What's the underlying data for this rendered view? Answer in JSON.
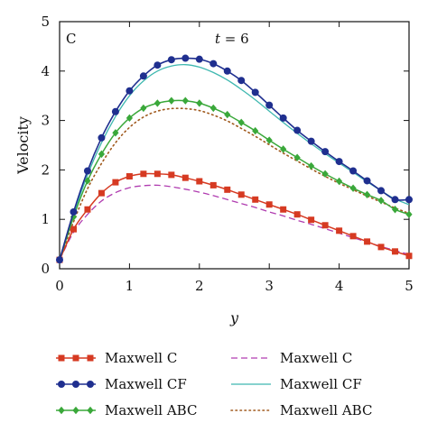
{
  "chart_data": {
    "type": "line",
    "panel_label": "C",
    "annotation_var": "t",
    "annotation_eq": " = 6",
    "xlabel": "y",
    "ylabel": "Velocity",
    "xlim": [
      0,
      5
    ],
    "ylim": [
      0,
      5
    ],
    "xticks": [
      0,
      1,
      2,
      3,
      4,
      5
    ],
    "yticks": [
      0,
      1,
      2,
      3,
      4,
      5
    ],
    "grid": false,
    "legend_position": "bottom",
    "series": [
      {
        "name": "Maxwell C",
        "style": "square-markers",
        "color": "#d63a22",
        "x": [
          0,
          0.2,
          0.4,
          0.6,
          0.8,
          1.0,
          1.2,
          1.4,
          1.6,
          1.8,
          2.0,
          2.2,
          2.4,
          2.6,
          2.8,
          3.0,
          3.2,
          3.4,
          3.6,
          3.8,
          4.0,
          4.2,
          4.4,
          4.6,
          4.8,
          5.0
        ],
        "values": [
          0.18,
          0.8,
          1.2,
          1.53,
          1.75,
          1.87,
          1.92,
          1.92,
          1.9,
          1.84,
          1.77,
          1.69,
          1.6,
          1.5,
          1.4,
          1.3,
          1.2,
          1.1,
          0.99,
          0.88,
          0.77,
          0.66,
          0.55,
          0.44,
          0.35,
          0.26
        ]
      },
      {
        "name": "Maxwell CF",
        "style": "circle-markers",
        "color": "#1f2f8f",
        "x": [
          0,
          0.2,
          0.4,
          0.6,
          0.8,
          1.0,
          1.2,
          1.4,
          1.6,
          1.8,
          2.0,
          2.2,
          2.4,
          2.6,
          2.8,
          3.0,
          3.2,
          3.4,
          3.6,
          3.8,
          4.0,
          4.2,
          4.4,
          4.6,
          4.8,
          5.0
        ],
        "values": [
          0.18,
          1.15,
          1.98,
          2.65,
          3.18,
          3.6,
          3.9,
          4.12,
          4.23,
          4.26,
          4.24,
          4.15,
          4.0,
          3.81,
          3.57,
          3.31,
          3.05,
          2.8,
          2.58,
          2.37,
          2.17,
          1.98,
          1.78,
          1.58,
          1.4,
          1.4
        ]
      },
      {
        "name": "Maxwell ABC",
        "style": "diamond-markers",
        "color": "#3aa83a",
        "x": [
          0,
          0.2,
          0.4,
          0.6,
          0.8,
          1.0,
          1.2,
          1.4,
          1.6,
          1.8,
          2.0,
          2.2,
          2.4,
          2.6,
          2.8,
          3.0,
          3.2,
          3.4,
          3.6,
          3.8,
          4.0,
          4.2,
          4.4,
          4.6,
          4.8,
          5.0
        ],
        "values": [
          0.18,
          1.05,
          1.78,
          2.32,
          2.75,
          3.05,
          3.25,
          3.35,
          3.4,
          3.4,
          3.35,
          3.25,
          3.12,
          2.96,
          2.79,
          2.6,
          2.42,
          2.25,
          2.08,
          1.92,
          1.77,
          1.63,
          1.5,
          1.38,
          1.2,
          1.1
        ]
      },
      {
        "name": "Maxwell C",
        "style": "dashed",
        "color": "#b03cb0",
        "x": [
          0,
          0.2,
          0.4,
          0.6,
          0.8,
          1.0,
          1.2,
          1.4,
          1.6,
          1.8,
          2.0,
          2.2,
          2.4,
          2.6,
          2.8,
          3.0,
          3.2,
          3.4,
          3.6,
          3.8,
          4.0,
          4.2,
          4.4,
          4.6,
          4.8,
          5.0
        ],
        "values": [
          0.18,
          0.74,
          1.1,
          1.37,
          1.54,
          1.64,
          1.68,
          1.69,
          1.66,
          1.61,
          1.55,
          1.48,
          1.4,
          1.32,
          1.24,
          1.15,
          1.07,
          0.98,
          0.9,
          0.81,
          0.72,
          0.63,
          0.54,
          0.45,
          0.37,
          0.29
        ]
      },
      {
        "name": "Maxwell CF",
        "style": "solid",
        "color": "#3fb8b0",
        "x": [
          0,
          0.2,
          0.4,
          0.6,
          0.8,
          1.0,
          1.2,
          1.4,
          1.6,
          1.8,
          2.0,
          2.2,
          2.4,
          2.6,
          2.8,
          3.0,
          3.2,
          3.4,
          3.6,
          3.8,
          4.0,
          4.2,
          4.4,
          4.6,
          4.8,
          5.0
        ],
        "values": [
          0.18,
          1.1,
          1.9,
          2.55,
          3.08,
          3.5,
          3.8,
          4.0,
          4.1,
          4.13,
          4.08,
          3.97,
          3.82,
          3.63,
          3.42,
          3.19,
          2.96,
          2.74,
          2.53,
          2.33,
          2.14,
          1.95,
          1.76,
          1.58,
          1.41,
          1.3
        ]
      },
      {
        "name": "Maxwell ABC",
        "style": "dotted",
        "color": "#a05a1e",
        "x": [
          0,
          0.2,
          0.4,
          0.6,
          0.8,
          1.0,
          1.2,
          1.4,
          1.6,
          1.8,
          2.0,
          2.2,
          2.4,
          2.6,
          2.8,
          3.0,
          3.2,
          3.4,
          3.6,
          3.8,
          4.0,
          4.2,
          4.4,
          4.6,
          4.8,
          5.0
        ],
        "values": [
          0.18,
          0.95,
          1.62,
          2.13,
          2.55,
          2.86,
          3.07,
          3.19,
          3.24,
          3.24,
          3.2,
          3.11,
          2.99,
          2.84,
          2.68,
          2.51,
          2.34,
          2.18,
          2.02,
          1.87,
          1.73,
          1.6,
          1.47,
          1.35,
          1.23,
          1.12
        ]
      }
    ]
  }
}
